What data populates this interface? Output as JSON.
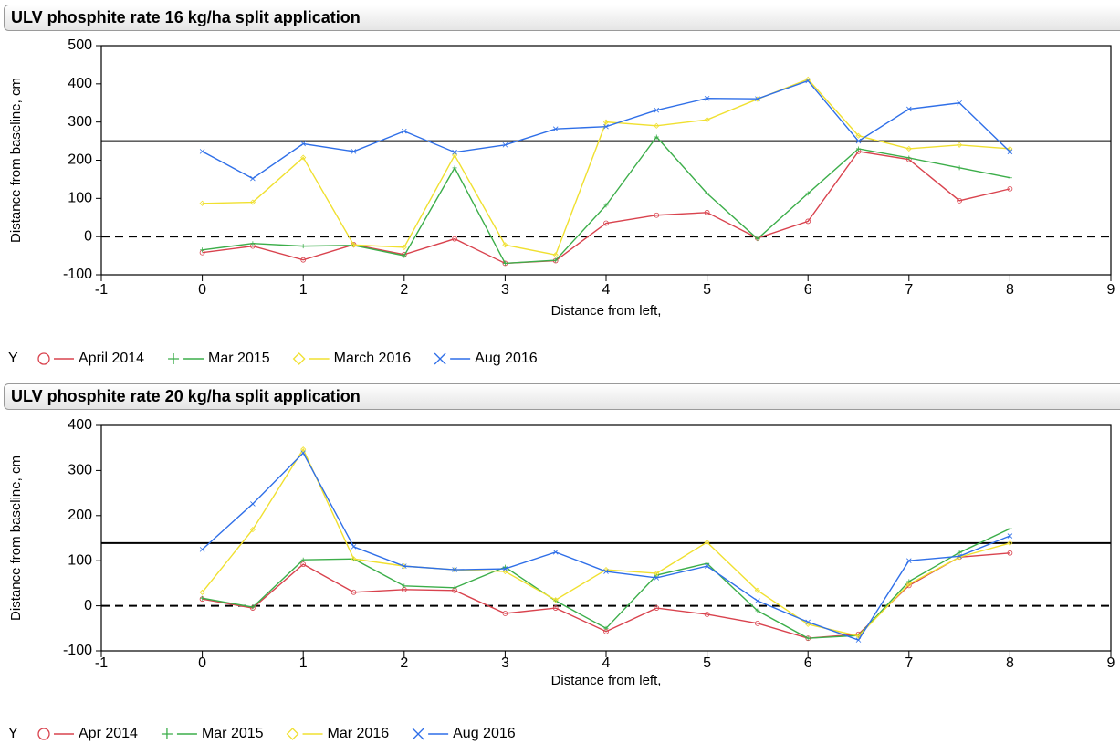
{
  "chart_data": [
    {
      "type": "line",
      "title": "ULV phosphite rate 16 kg/ha split application",
      "x_label": "Distance from left,",
      "y_label": "Distance from baseline,  cm",
      "legend_title": "Y",
      "x": [
        0,
        0.5,
        1,
        1.5,
        2,
        2.5,
        3,
        3.5,
        4,
        4.5,
        5,
        5.5,
        6,
        6.5,
        7,
        7.5,
        8
      ],
      "xlim": [
        -1,
        9
      ],
      "xticks": [
        -1,
        0,
        1,
        2,
        3,
        4,
        5,
        6,
        7,
        8,
        9
      ],
      "ylim": [
        -100,
        500
      ],
      "yticks": [
        -100,
        0,
        100,
        200,
        300,
        400,
        500
      ],
      "reference_lines": [
        {
          "value": 250,
          "style": "solid"
        },
        {
          "value": 0,
          "style": "dashed"
        }
      ],
      "series": [
        {
          "name": "April 2014",
          "color": "#d9434e",
          "marker": "circle",
          "values": [
            -42,
            -25,
            -61,
            -21,
            -47,
            -6,
            -70,
            -63,
            35,
            56,
            63,
            -4,
            40,
            223,
            202,
            94,
            125
          ]
        },
        {
          "name": "Mar 2015",
          "color": "#3cae4a",
          "marker": "plus",
          "values": [
            -35,
            -18,
            -25,
            -23,
            -50,
            180,
            -70,
            -62,
            82,
            261,
            113,
            -6,
            113,
            230,
            206,
            180,
            154
          ]
        },
        {
          "name": "March 2016",
          "color": "#f0e030",
          "marker": "diamond",
          "values": [
            87,
            90,
            207,
            -22,
            -28,
            213,
            -22,
            -48,
            300,
            290,
            306,
            360,
            412,
            264,
            230,
            240,
            230
          ]
        },
        {
          "name": "Aug 2016",
          "color": "#2f6fe8",
          "marker": "cross",
          "values": [
            223,
            152,
            243,
            223,
            276,
            221,
            240,
            282,
            288,
            331,
            362,
            361,
            408,
            250,
            334,
            350,
            222
          ]
        }
      ]
    },
    {
      "type": "line",
      "title": "ULV phosphite rate 20 kg/ha split application",
      "x_label": "Distance from left,",
      "y_label": "Distance from baseline, cm",
      "legend_title": "Y",
      "x": [
        0,
        0.5,
        1,
        1.5,
        2,
        2.5,
        3,
        3.5,
        4,
        4.5,
        5,
        5.5,
        6,
        6.5,
        7,
        7.5,
        8
      ],
      "xlim": [
        -1,
        9
      ],
      "xticks": [
        -1,
        0,
        1,
        2,
        3,
        4,
        5,
        6,
        7,
        8,
        9
      ],
      "ylim": [
        -100,
        400
      ],
      "yticks": [
        -100,
        0,
        100,
        200,
        300,
        400
      ],
      "reference_lines": [
        {
          "value": 139,
          "style": "solid"
        },
        {
          "value": 0,
          "style": "dashed"
        }
      ],
      "series": [
        {
          "name": "Apr 2014",
          "color": "#d9434e",
          "marker": "circle",
          "values": [
            15,
            -5,
            92,
            30,
            36,
            34,
            -17,
            -5,
            -57,
            -5,
            -19,
            -39,
            -72,
            -63,
            45,
            108,
            117
          ]
        },
        {
          "name": "Mar 2015",
          "color": "#3cae4a",
          "marker": "plus",
          "values": [
            17,
            -3,
            102,
            104,
            44,
            40,
            86,
            11,
            -50,
            68,
            94,
            -11,
            -72,
            -66,
            54,
            118,
            171
          ]
        },
        {
          "name": "Mar 2016",
          "color": "#f0e030",
          "marker": "diamond",
          "values": [
            30,
            169,
            347,
            104,
            88,
            80,
            76,
            13,
            80,
            72,
            141,
            34,
            -41,
            -67,
            48,
            108,
            139
          ]
        },
        {
          "name": "Aug 2016",
          "color": "#2f6fe8",
          "marker": "cross",
          "values": [
            125,
            226,
            339,
            131,
            88,
            80,
            82,
            119,
            76,
            62,
            88,
            11,
            -36,
            -76,
            100,
            110,
            155
          ]
        }
      ]
    }
  ]
}
